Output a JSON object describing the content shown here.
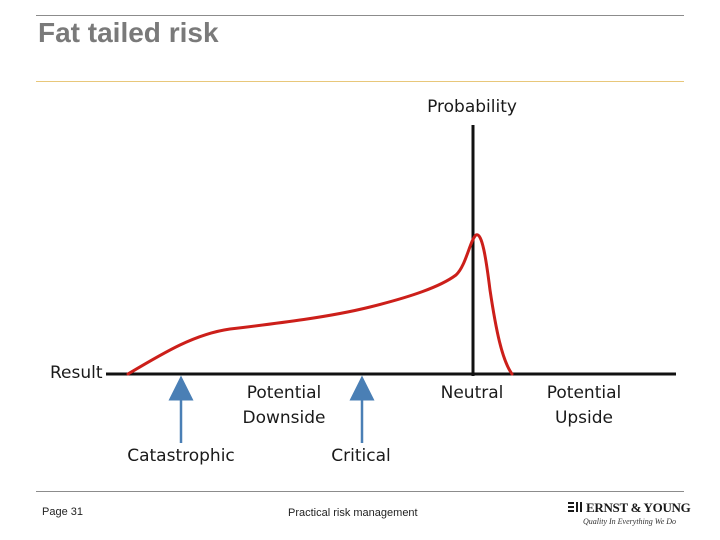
{
  "slide": {
    "title": "Fat tailed risk",
    "footer": {
      "page": "Page 31",
      "center": "Practical risk management",
      "logo_name": "ERNST & YOUNG",
      "logo_tagline": "Quality In Everything We Do"
    }
  },
  "diagram": {
    "axis_y_label": "Probability",
    "axis_x_label": "Result",
    "regions": {
      "potential_downside_line1": "Potential",
      "potential_downside_line2": "Downside",
      "neutral": "Neutral",
      "potential_upside_line1": "Potential",
      "potential_upside_line2": "Upside"
    },
    "markers": {
      "catastrophic": "Catastrophic",
      "critical": "Critical"
    },
    "colors": {
      "curve": "#cc1f1a",
      "arrow": "#4a7fb5",
      "axis": "#111111"
    }
  }
}
